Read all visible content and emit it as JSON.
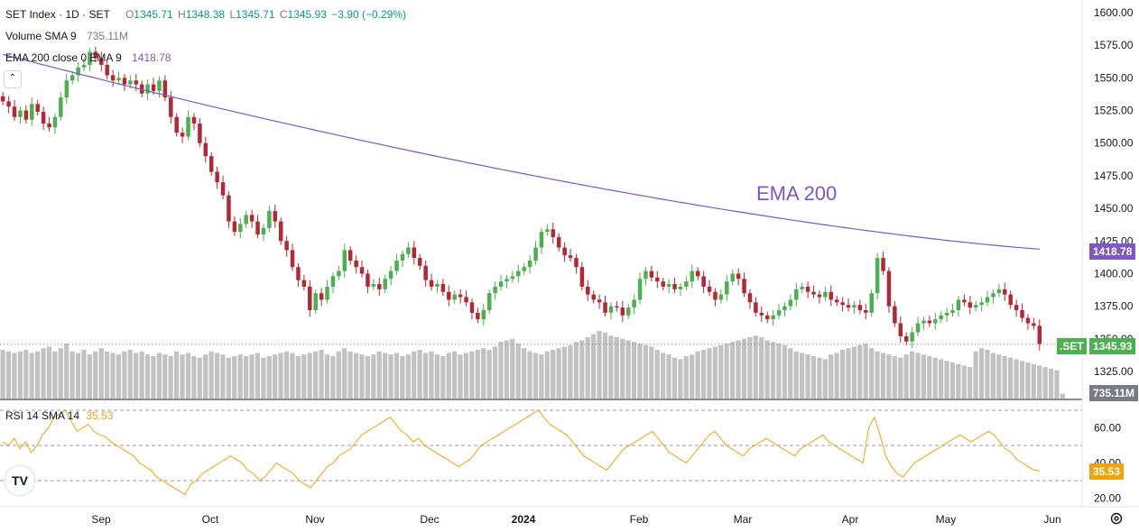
{
  "legend": {
    "symbol": "SET Index · 1D · SET",
    "o_label": "O",
    "o_val": "1345.71",
    "h_label": "H",
    "h_val": "1348.38",
    "l_label": "L",
    "l_val": "1345.71",
    "c_label": "C",
    "c_val": "1345.93",
    "change": "−3.90 (−0.29%)",
    "volume_name": "Volume SMA 9",
    "volume_val": "735.11M",
    "ema_name": "EMA 200 close 0 EMA 9",
    "ema_val": "1418.78",
    "rsi_name": "RSI 14 SMA 14",
    "rsi_val": "35.53"
  },
  "annotation": "EMA 200",
  "tags": {
    "ema": "1418.78",
    "price_symbol": ".SET",
    "price": "1345.93",
    "volume": "735.11M",
    "rsi": "35.53"
  },
  "logo": "TV",
  "collapse_icon": "chevron-up-icon",
  "settings_icon": "gear-icon",
  "colors": {
    "up": "#089981",
    "down": "#f23645",
    "candle_up": "#4caf50",
    "candle_down": "#b22833",
    "ema": "#7e57c2",
    "rsi": "#f0a30a",
    "volume": "#c2c2c2",
    "ema_tag": "#7e57c2",
    "price_tag": "#4caf50",
    "volume_tag": "#787b86",
    "rsi_tag": "#f0a30a"
  },
  "chart_data": [
    {
      "type": "candlestick",
      "title": "SET Index · 1D · SET",
      "ylim": [
        1310,
        1605
      ],
      "y_ticks": [
        1325,
        1350,
        1375,
        1400,
        1425,
        1450,
        1475,
        1500,
        1525,
        1550,
        1575,
        1600
      ],
      "y_tick_labels": [
        "1325.00",
        "1350.00",
        "1375.00",
        "1400.00",
        "1425.00",
        "1450.00",
        "1475.00",
        "1500.00",
        "1525.00",
        "1550.00",
        "1575.00",
        "1600.00"
      ],
      "x_tick_labels": [
        "Sep",
        "Oct",
        "Nov",
        "Dec",
        "2024",
        "Feb",
        "Mar",
        "Apr",
        "May",
        "Jun"
      ],
      "close_series": [
        1532,
        1528,
        1520,
        1525,
        1518,
        1530,
        1524,
        1515,
        1512,
        1520,
        1535,
        1548,
        1552,
        1558,
        1560,
        1570,
        1565,
        1560,
        1552,
        1548,
        1550,
        1545,
        1548,
        1545,
        1538,
        1545,
        1540,
        1548,
        1535,
        1520,
        1508,
        1505,
        1520,
        1515,
        1500,
        1490,
        1478,
        1470,
        1460,
        1440,
        1432,
        1438,
        1445,
        1440,
        1430,
        1435,
        1448,
        1440,
        1425,
        1418,
        1405,
        1395,
        1390,
        1372,
        1385,
        1380,
        1390,
        1398,
        1402,
        1418,
        1410,
        1405,
        1400,
        1390,
        1392,
        1388,
        1396,
        1402,
        1410,
        1415,
        1420,
        1412,
        1406,
        1395,
        1390,
        1392,
        1386,
        1380,
        1384,
        1382,
        1378,
        1370,
        1365,
        1372,
        1385,
        1390,
        1394,
        1396,
        1398,
        1402,
        1405,
        1410,
        1420,
        1432,
        1434,
        1428,
        1420,
        1414,
        1412,
        1405,
        1390,
        1384,
        1380,
        1378,
        1370,
        1375,
        1374,
        1368,
        1374,
        1380,
        1396,
        1402,
        1397,
        1394,
        1390,
        1392,
        1388,
        1390,
        1394,
        1402,
        1398,
        1390,
        1386,
        1380,
        1384,
        1394,
        1400,
        1396,
        1385,
        1378,
        1370,
        1368,
        1365,
        1368,
        1372,
        1375,
        1380,
        1388,
        1390,
        1386,
        1384,
        1382,
        1386,
        1380,
        1378,
        1376,
        1374,
        1376,
        1372,
        1370,
        1385,
        1412,
        1402,
        1375,
        1362,
        1352,
        1348,
        1355,
        1362,
        1364,
        1362,
        1365,
        1368,
        1370,
        1372,
        1380,
        1378,
        1374,
        1376,
        1378,
        1382,
        1385,
        1388,
        1384,
        1376,
        1372,
        1366,
        1362,
        1360,
        1346
      ],
      "ema200": {
        "name": "EMA 200",
        "start": 1568,
        "end": 1418.78
      },
      "last_price": 1345.93
    },
    {
      "type": "bar",
      "title": "Volume SMA 9",
      "last_value_label": "735.11M",
      "series": [
        {
          "values": [
            62,
            60,
            58,
            60,
            62,
            58,
            60,
            64,
            66,
            60,
            64,
            70,
            60,
            58,
            62,
            56,
            60,
            64,
            60,
            58,
            56,
            60,
            62,
            58,
            60,
            56,
            54,
            58,
            56,
            54,
            60,
            56,
            58,
            54,
            52,
            56,
            60,
            58,
            56,
            52,
            54,
            56,
            54,
            56,
            58,
            52,
            54,
            56,
            58,
            60,
            58,
            54,
            56,
            58,
            60,
            62,
            56,
            54,
            60,
            64,
            60,
            58,
            56,
            54,
            56,
            60,
            58,
            56,
            58,
            54,
            56,
            60,
            62,
            58,
            60,
            56,
            54,
            58,
            60,
            56,
            58,
            60,
            62,
            64,
            62,
            66,
            72,
            74,
            76,
            70,
            64,
            60,
            58,
            56,
            60,
            62,
            64,
            66,
            68,
            72,
            74,
            78,
            82,
            86,
            84,
            80,
            78,
            76,
            74,
            72,
            70,
            68,
            66,
            62,
            58,
            56,
            52,
            50,
            54,
            56,
            60,
            62,
            64,
            66,
            68,
            70,
            72,
            74,
            76,
            78,
            80,
            78,
            74,
            72,
            70,
            68,
            64,
            60,
            58,
            56,
            54,
            52,
            50,
            56,
            58,
            62,
            64,
            66,
            68,
            70,
            64,
            60,
            58,
            56,
            54,
            52,
            56,
            60,
            58,
            56,
            54,
            52,
            50,
            48,
            46,
            44,
            42,
            40,
            60,
            64,
            62,
            58,
            56,
            54,
            52,
            50,
            48,
            46,
            44,
            42,
            40,
            38,
            36,
            6
          ]
        }
      ]
    },
    {
      "type": "line",
      "title": "RSI 14 SMA 14",
      "ylim": [
        15,
        80
      ],
      "y_ticks": [
        20,
        40,
        60
      ],
      "y_tick_labels": [
        "20.00",
        "40.00",
        "60.00"
      ],
      "bands": [
        30,
        50,
        70
      ],
      "series": [
        {
          "name": "RSI 14",
          "values": [
            52,
            50,
            54,
            48,
            52,
            46,
            50,
            56,
            60,
            66,
            68,
            70,
            64,
            58,
            60,
            62,
            58,
            56,
            55,
            52,
            50,
            48,
            46,
            44,
            40,
            38,
            36,
            32,
            30,
            28,
            26,
            24,
            22,
            28,
            30,
            34,
            36,
            38,
            40,
            42,
            44,
            42,
            40,
            36,
            34,
            30,
            32,
            36,
            40,
            38,
            36,
            34,
            30,
            28,
            26,
            30,
            34,
            38,
            40,
            44,
            46,
            48,
            52,
            56,
            58,
            60,
            62,
            64,
            66,
            62,
            58,
            56,
            52,
            54,
            50,
            48,
            46,
            44,
            42,
            40,
            38,
            40,
            42,
            46,
            50,
            52,
            54,
            56,
            58,
            60,
            62,
            64,
            66,
            68,
            70,
            66,
            62,
            60,
            58,
            56,
            52,
            48,
            44,
            42,
            40,
            38,
            36,
            40,
            44,
            48,
            50,
            52,
            54,
            56,
            58,
            54,
            50,
            46,
            44,
            42,
            40,
            44,
            48,
            52,
            56,
            58,
            54,
            50,
            48,
            46,
            44,
            48,
            50,
            52,
            54,
            52,
            50,
            48,
            46,
            44,
            48,
            50,
            52,
            54,
            56,
            52,
            50,
            48,
            46,
            44,
            42,
            40,
            60,
            66,
            56,
            44,
            38,
            34,
            32,
            36,
            40,
            42,
            44,
            46,
            48,
            50,
            52,
            54,
            56,
            54,
            52,
            54,
            56,
            58,
            56,
            52,
            48,
            46,
            42,
            40,
            38,
            36,
            35.53
          ]
        }
      ]
    }
  ]
}
